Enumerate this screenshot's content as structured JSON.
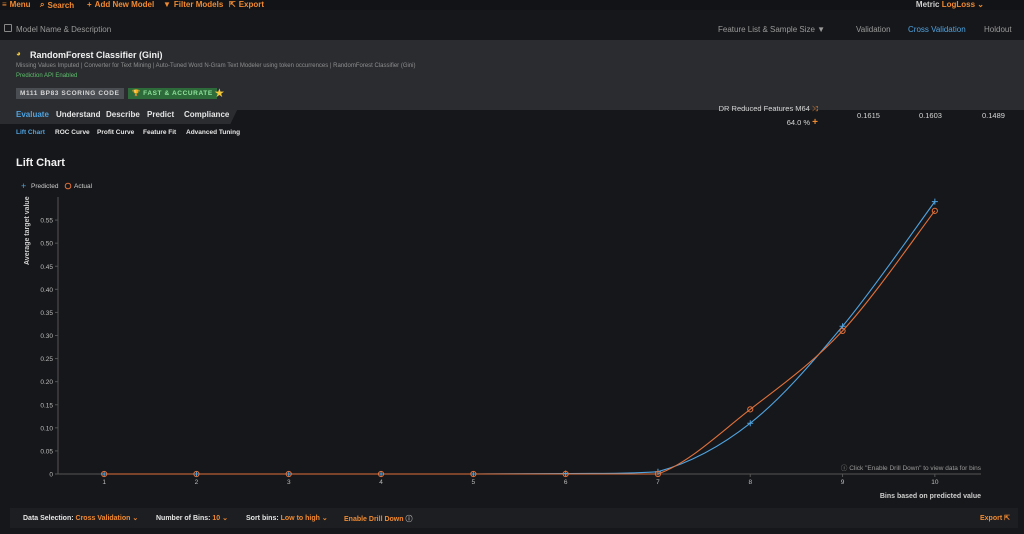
{
  "topbar": {
    "menu": "Menu",
    "search": "Search",
    "add_model": "Add New Model",
    "filter": "Filter Models",
    "export": "Export",
    "metric_label": "Metric",
    "metric_value": "LogLoss"
  },
  "header": {
    "model_col": "Model Name & Description",
    "feature_col": "Feature List & Sample Size",
    "validation": "Validation",
    "cross_validation": "Cross Validation",
    "holdout": "Holdout"
  },
  "model": {
    "title": "RandomForest Classifier (Gini)",
    "description": "Missing Values Imputed | Converter for Text Mining | Auto-Tuned Word N-Gram Text Modeler using token occurrences | RandomForest Classifier (Gini)",
    "api": "Prediction API Enabled",
    "badge_grey": "M111  BP83  SCORING CODE",
    "badge_green": "FAST & ACCURATE",
    "feature_list": "DR Reduced Features M64",
    "sample_size": "64.0 %",
    "validation": "0.1615",
    "cross_validation": "0.1603",
    "holdout": "0.1489"
  },
  "tabs": [
    "Evaluate",
    "Understand",
    "Describe",
    "Predict",
    "Compliance"
  ],
  "subtabs": [
    "Lift Chart",
    "ROC Curve",
    "Profit Curve",
    "Feature Fit",
    "Advanced Tuning"
  ],
  "section_title": "Lift Chart",
  "chart_hint": "Click \"Enable Drill Down\" to view data for bins",
  "chart_data": {
    "type": "line",
    "x": [
      1,
      2,
      3,
      4,
      5,
      6,
      7,
      8,
      9,
      10
    ],
    "series": [
      {
        "name": "Predicted",
        "values": [
          0,
          0,
          0,
          0,
          0,
          0.001,
          0.005,
          0.11,
          0.32,
          0.59
        ],
        "color": "#4fa3e0"
      },
      {
        "name": "Actual",
        "values": [
          0,
          0,
          0,
          0,
          0,
          0,
          0,
          0.14,
          0.31,
          0.57
        ],
        "color": "#e0703a"
      }
    ],
    "ylabel": "Average target value",
    "xlabel": "Bins based on predicted value",
    "ylim": [
      0,
      0.6
    ],
    "yticks": [
      "0",
      "0.05",
      "0.10",
      "0.15",
      "0.20",
      "0.25",
      "0.30",
      "0.35",
      "0.40",
      "0.45",
      "0.50",
      "0.55"
    ],
    "legend": "top-left"
  },
  "footer": {
    "data_selection_label": "Data Selection:",
    "data_selection_value": "Cross Validation",
    "bins_label": "Number of Bins:",
    "bins_value": "10",
    "sort_label": "Sort bins:",
    "sort_value": "Low to high",
    "drill_down": "Enable Drill Down",
    "export": "Export"
  }
}
